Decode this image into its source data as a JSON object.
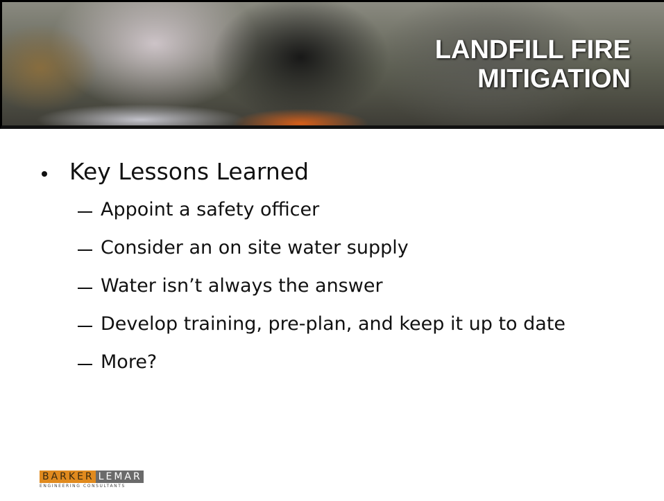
{
  "header": {
    "title_lines": [
      "LANDFILL FIRE",
      "MITIGATION"
    ]
  },
  "content": {
    "heading": "Key Lessons Learned",
    "items": [
      "Appoint a safety officer",
      "Consider an on site water supply",
      "Water isn’t always the answer",
      "Develop training, pre-plan, and keep it up to date",
      "More?"
    ]
  },
  "logo": {
    "left": "BARKER",
    "right": "LEMAR",
    "tagline": "ENGINEERING CONSULTANTS"
  }
}
